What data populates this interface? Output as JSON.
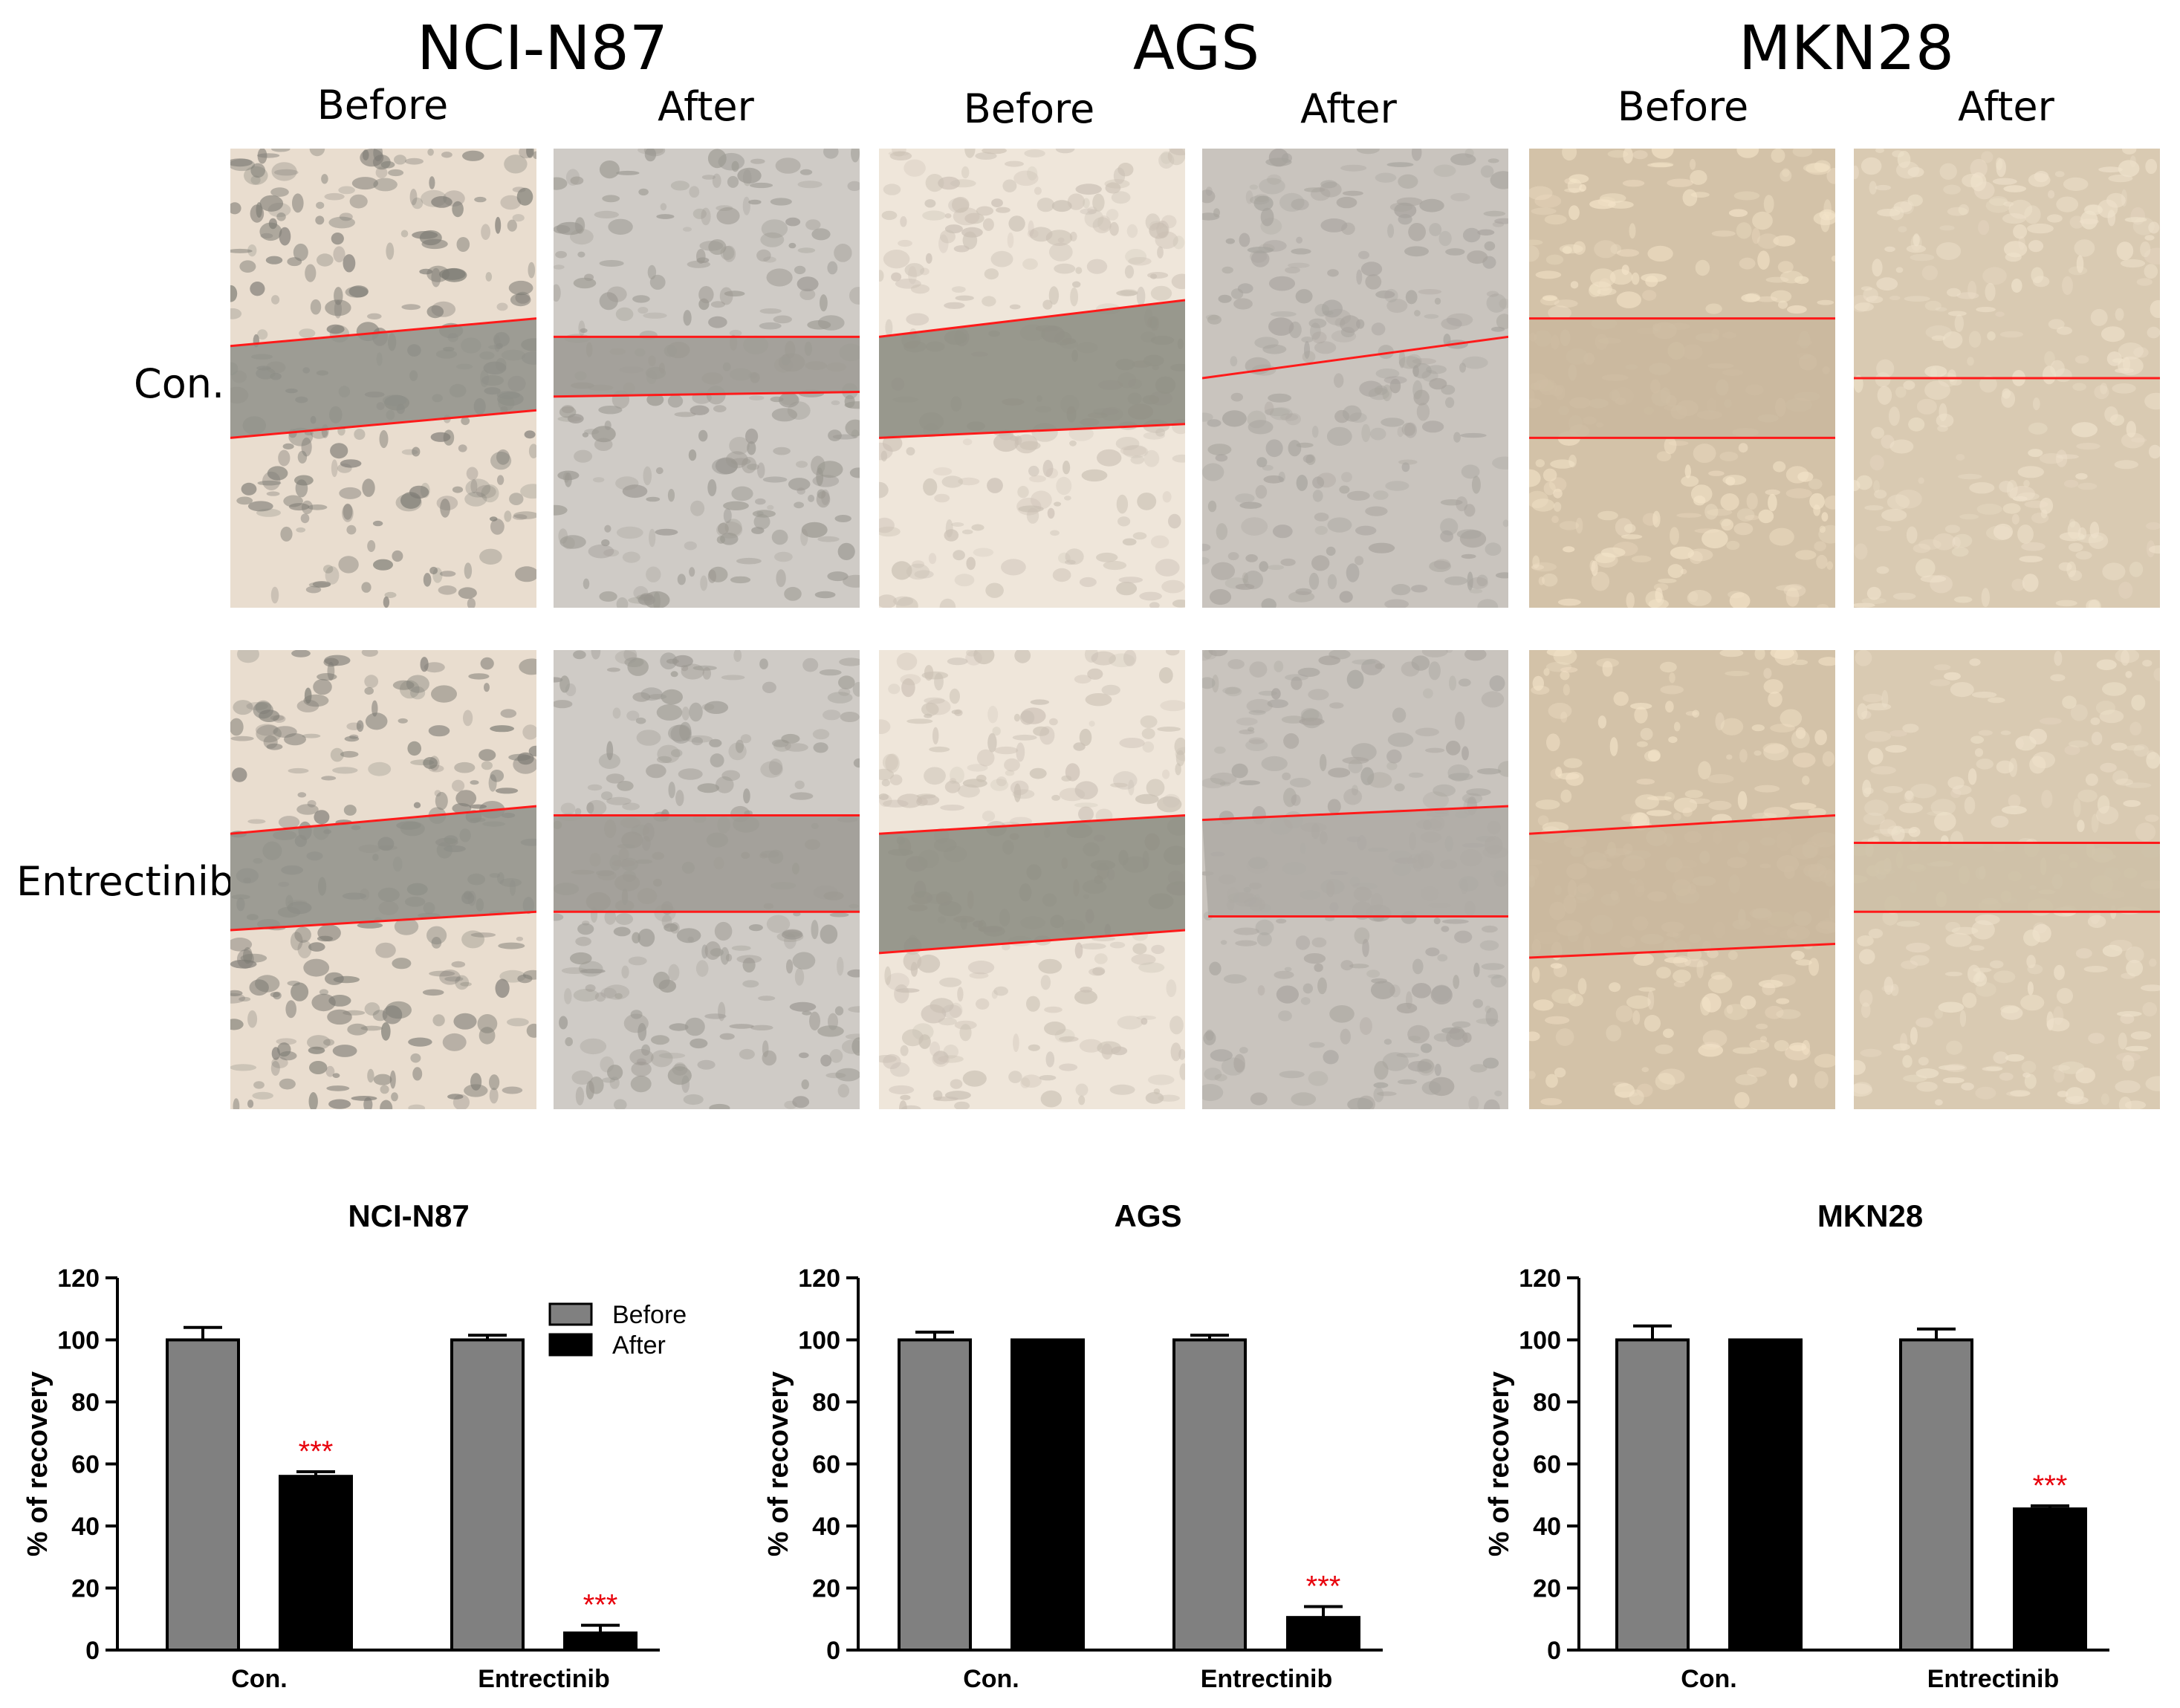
{
  "micrographs": {
    "cell_lines": [
      "NCI-N87",
      "AGS",
      "MKN28"
    ],
    "timepoints": [
      "Before",
      "After"
    ],
    "rows": [
      "Con.",
      "Entrectinib"
    ]
  },
  "colors": {
    "before_bar": "#808080",
    "after_bar": "#000000",
    "significance": "#e8000b",
    "wound_line": "#ff1a1a"
  },
  "chart_data": [
    {
      "type": "bar",
      "title": "NCI-N87",
      "categories": [
        "Con.",
        "Entrectinib"
      ],
      "series": [
        {
          "name": "Before",
          "values": [
            100,
            100
          ],
          "errors": [
            4,
            1.5
          ],
          "color": "#808080"
        },
        {
          "name": "After",
          "values": [
            56,
            5.5
          ],
          "errors": [
            1.5,
            2.5
          ],
          "color": "#000000"
        }
      ],
      "significance": [
        "",
        "***",
        "",
        "***"
      ],
      "ylabel": "% of recovery",
      "xlabel": "",
      "ylim": [
        0,
        120
      ],
      "yticks": [
        "0",
        "20",
        "40",
        "60",
        "80",
        "100",
        "120"
      ],
      "legend": {
        "position": "top-right",
        "entries": [
          "Before",
          "After"
        ]
      }
    },
    {
      "type": "bar",
      "title": "AGS",
      "categories": [
        "Con.",
        "Entrectinib"
      ],
      "series": [
        {
          "name": "Before",
          "values": [
            100,
            100
          ],
          "errors": [
            2.5,
            1.5
          ],
          "color": "#808080"
        },
        {
          "name": "After",
          "values": [
            100,
            10.5
          ],
          "errors": [
            0,
            3.5
          ],
          "color": "#000000"
        }
      ],
      "significance": [
        "",
        "",
        "",
        "***"
      ],
      "ylabel": "% of recovery",
      "xlabel": "",
      "ylim": [
        0,
        120
      ],
      "yticks": [
        "0",
        "20",
        "40",
        "60",
        "80",
        "100",
        "120"
      ]
    },
    {
      "type": "bar",
      "title": "MKN28",
      "categories": [
        "Con.",
        "Entrectinib"
      ],
      "series": [
        {
          "name": "Before",
          "values": [
            100,
            100
          ],
          "errors": [
            4.5,
            3.5
          ],
          "color": "#808080"
        },
        {
          "name": "After",
          "values": [
            100,
            45.5
          ],
          "errors": [
            0,
            1
          ],
          "color": "#000000"
        }
      ],
      "significance": [
        "",
        "",
        "",
        "***"
      ],
      "ylabel": "% of recovery",
      "xlabel": "",
      "ylim": [
        0,
        120
      ],
      "yticks": [
        "0",
        "20",
        "40",
        "60",
        "80",
        "100",
        "120"
      ]
    }
  ]
}
